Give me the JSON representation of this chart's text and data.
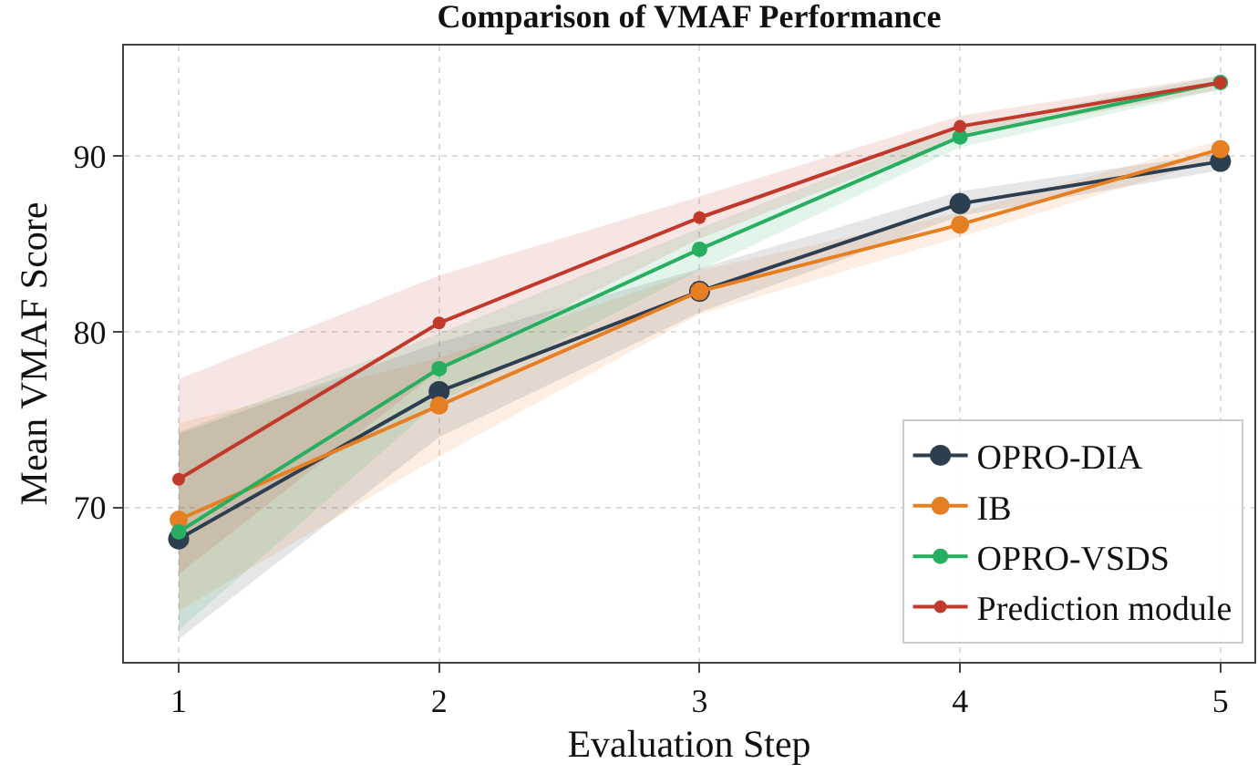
{
  "chart_data": {
    "type": "line",
    "title": "Comparison of VMAF Performance",
    "xlabel": "Evaluation Step",
    "ylabel": "Mean VMAF Score",
    "x": [
      1,
      2,
      3,
      4,
      5
    ],
    "series": [
      {
        "name": "OPRO-DIA",
        "color": "#2c3e50",
        "values": [
          68.2,
          76.6,
          82.3,
          87.3,
          89.7
        ],
        "lower": [
          62.5,
          74.0,
          81.1,
          86.6,
          89.2
        ],
        "upper": [
          74.2,
          79.4,
          83.6,
          88.0,
          90.2
        ]
      },
      {
        "name": "IB",
        "color": "#e67e22",
        "values": [
          69.3,
          75.8,
          82.3,
          86.1,
          90.4
        ],
        "lower": [
          64.1,
          72.9,
          81.0,
          85.4,
          89.9
        ],
        "upper": [
          74.8,
          78.5,
          83.5,
          86.8,
          90.9
        ]
      },
      {
        "name": "OPRO-VSDS",
        "color": "#27ae60",
        "values": [
          68.6,
          77.9,
          84.7,
          91.1,
          94.2
        ],
        "lower": [
          63.0,
          76.0,
          83.5,
          90.5,
          93.8
        ],
        "upper": [
          74.3,
          79.9,
          85.9,
          91.7,
          94.6
        ]
      },
      {
        "name": "Prediction module",
        "color": "#c0392b",
        "values": [
          71.6,
          80.5,
          86.5,
          91.7,
          94.2
        ],
        "lower": [
          66.2,
          77.8,
          85.3,
          91.1,
          93.8
        ],
        "upper": [
          77.3,
          83.2,
          87.7,
          92.3,
          94.6
        ]
      }
    ],
    "xlim": [
      0.79,
      5.13
    ],
    "ylim": [
      61.2,
      96.3
    ],
    "xticks": [
      1,
      2,
      3,
      4,
      5
    ],
    "yticks": [
      70,
      80,
      90
    ],
    "grid": true,
    "legend": "bottom right",
    "marker": "circle",
    "line_style": "solid"
  }
}
